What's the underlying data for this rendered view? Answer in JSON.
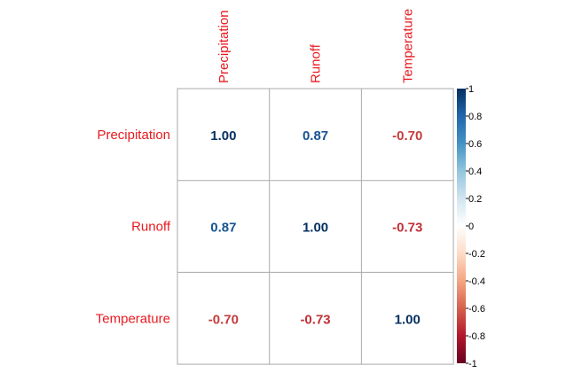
{
  "chart_data": {
    "type": "heatmap",
    "title": "",
    "variables": [
      "Precipitation",
      "Runoff",
      "Temperature"
    ],
    "matrix": [
      [
        1.0,
        0.87,
        -0.7
      ],
      [
        0.87,
        1.0,
        -0.73
      ],
      [
        -0.7,
        -0.73,
        1.0
      ]
    ],
    "cell_labels": [
      [
        "1.00",
        "0.87",
        "-0.70"
      ],
      [
        "0.87",
        "1.00",
        "-0.73"
      ],
      [
        "-0.70",
        "-0.73",
        "1.00"
      ]
    ],
    "label_color": "#e8191f",
    "colorbar": {
      "range": [
        -1,
        1
      ],
      "ticks": [
        1,
        0.8,
        0.6,
        0.4,
        0.2,
        0,
        -0.2,
        -0.4,
        -0.6,
        -0.8,
        -1
      ],
      "tick_labels": [
        "1",
        "0.8",
        "0.6",
        "0.4",
        "0.2",
        "0",
        "-0.2",
        "-0.4",
        "-0.6",
        "-0.8",
        "-1"
      ],
      "colors": [
        "#67001f",
        "#b2182b",
        "#d6604d",
        "#f4a582",
        "#fddbc7",
        "#ffffff",
        "#d1e5f0",
        "#92c5de",
        "#4393c3",
        "#2166ac",
        "#053061"
      ]
    },
    "grid": true,
    "legend_position": "right"
  }
}
